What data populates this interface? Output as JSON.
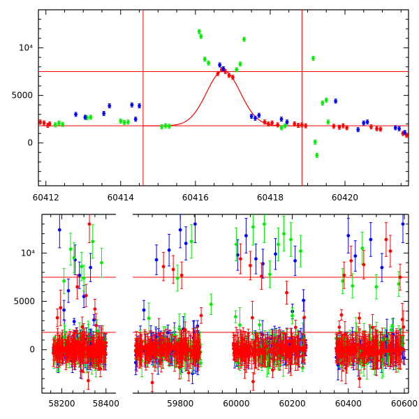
{
  "colors": {
    "red": "#ff0000",
    "green": "#00ee00",
    "blue": "#0000ff",
    "axes": "#000000",
    "background": "#ffffff"
  },
  "chart_data": [
    {
      "type": "scatter",
      "panel": "top",
      "xlim": [
        60411.8,
        60421.7
      ],
      "ylim": [
        -4500,
        14000
      ],
      "x_ticks": [
        60412,
        60414,
        60416,
        60418,
        60420
      ],
      "x_tick_labels": [
        "60412",
        "60414",
        "60416",
        "60418",
        "60420"
      ],
      "y_ticks": [
        0,
        5000,
        10000
      ],
      "y_tick_labels": [
        "0",
        "5000",
        "10⁴"
      ],
      "hlines": [
        7500,
        1800
      ],
      "vlines": [
        60414.6,
        60418.85
      ],
      "fit_curve": {
        "baseline": 1800,
        "peak": 7600,
        "center": 60416.75,
        "sigma": 0.45
      },
      "series": [
        {
          "color": "red",
          "points": [
            [
              60411.85,
              2200
            ],
            [
              60411.95,
              2100
            ],
            [
              60412.05,
              1850
            ],
            [
              60412.1,
              2000
            ],
            [
              60416.6,
              7300
            ],
            [
              60416.7,
              7700
            ],
            [
              60416.8,
              7500
            ],
            [
              60416.9,
              7100
            ],
            [
              60417.0,
              6900
            ],
            [
              60417.85,
              2200
            ],
            [
              60417.95,
              2000
            ],
            [
              60418.05,
              2100
            ],
            [
              60418.2,
              1900
            ],
            [
              60418.65,
              2000
            ],
            [
              60418.75,
              1850
            ],
            [
              60418.85,
              1900
            ],
            [
              60418.95,
              1800
            ],
            [
              60419.7,
              1750
            ],
            [
              60419.85,
              1650
            ],
            [
              60419.95,
              1800
            ],
            [
              60420.05,
              1600
            ],
            [
              60420.7,
              1700
            ],
            [
              60420.85,
              1500
            ],
            [
              60420.95,
              1450
            ],
            [
              60421.55,
              1000
            ],
            [
              60421.65,
              800
            ]
          ]
        },
        {
          "color": "green",
          "points": [
            [
              60412.25,
              1900
            ],
            [
              60412.35,
              2100
            ],
            [
              60412.45,
              1950
            ],
            [
              60413.1,
              2650
            ],
            [
              60413.2,
              2700
            ],
            [
              60414.0,
              2300
            ],
            [
              60414.1,
              2150
            ],
            [
              60414.2,
              2200
            ],
            [
              60415.1,
              1700
            ],
            [
              60415.2,
              1800
            ],
            [
              60415.3,
              1750
            ],
            [
              60416.1,
              11700
            ],
            [
              60416.15,
              11200
            ],
            [
              60416.25,
              8800
            ],
            [
              60416.35,
              8400
            ],
            [
              60417.1,
              7700
            ],
            [
              60417.2,
              8300
            ],
            [
              60417.3,
              10900
            ],
            [
              60418.3,
              1600
            ],
            [
              60418.4,
              1800
            ],
            [
              60419.15,
              8900
            ],
            [
              60419.2,
              100
            ],
            [
              60419.25,
              -1300
            ],
            [
              60419.4,
              4200
            ],
            [
              60419.5,
              4500
            ],
            [
              60419.55,
              2200
            ]
          ]
        },
        {
          "color": "blue",
          "points": [
            [
              60412.8,
              3000
            ],
            [
              60413.05,
              2700
            ],
            [
              60413.55,
              3100
            ],
            [
              60413.7,
              3900
            ],
            [
              60414.3,
              4000
            ],
            [
              60414.4,
              2500
            ],
            [
              60414.5,
              3900
            ],
            [
              60416.65,
              8200
            ],
            [
              60416.75,
              7800
            ],
            [
              60417.5,
              2800
            ],
            [
              60417.6,
              2600
            ],
            [
              60417.7,
              2900
            ],
            [
              60418.3,
              2500
            ],
            [
              60418.45,
              2200
            ],
            [
              60419.75,
              4400
            ],
            [
              60420.35,
              1400
            ],
            [
              60420.5,
              2100
            ],
            [
              60420.6,
              2200
            ],
            [
              60421.35,
              1600
            ],
            [
              60421.45,
              1500
            ],
            [
              60421.6,
              1100
            ]
          ]
        }
      ]
    },
    {
      "type": "scatter",
      "panel": "bottom",
      "axis_break": true,
      "segments": [
        {
          "xlim": [
            58110,
            58445
          ],
          "x_ticks": [
            58200,
            58400
          ],
          "x_tick_labels": [
            "58200",
            "58400"
          ]
        },
        {
          "xlim": [
            59630,
            60615
          ],
          "x_ticks": [
            59800,
            60000,
            60200,
            60400,
            60600
          ],
          "x_tick_labels": [
            "59800",
            "60000",
            "60200",
            "60400",
            "60600"
          ]
        }
      ],
      "ylim": [
        -4500,
        14000
      ],
      "y_ticks": [
        0,
        5000,
        10000
      ],
      "y_tick_labels": [
        "0",
        "5000",
        "10⁴"
      ],
      "hlines": [
        7500,
        1800
      ],
      "observing_seasons": [
        [
          58160,
          58400
        ],
        [
          59640,
          59875
        ],
        [
          59990,
          60250
        ],
        [
          60355,
          60600
        ]
      ],
      "series": [
        {
          "color": "blue",
          "points": [
            [
              58190,
              12400
            ],
            [
              58230,
              6100
            ],
            [
              58260,
              9300
            ],
            [
              58280,
              7700
            ],
            [
              58300,
              5500
            ],
            [
              58330,
              8500
            ],
            [
              58210,
              4100
            ],
            [
              59800,
              12400
            ],
            [
              59715,
              9300
            ],
            [
              59760,
              10300
            ],
            [
              59820,
              11000
            ],
            [
              59853,
              13000
            ],
            [
              60005,
              9800
            ],
            [
              60035,
              11800
            ],
            [
              60070,
              9400
            ],
            [
              60095,
              8900
            ],
            [
              60140,
              9900
            ],
            [
              60210,
              9200
            ],
            [
              60400,
              11800
            ],
            [
              60425,
              9700
            ],
            [
              60480,
              11400
            ],
            [
              60520,
              8500
            ],
            [
              60595,
              13000
            ],
            [
              59670,
              4100
            ],
            [
              60240,
              5100
            ]
          ]
        },
        {
          "color": "green",
          "points": [
            [
              58240,
              10400
            ],
            [
              58255,
              9500
            ],
            [
              58290,
              8600
            ],
            [
              58340,
              11200
            ],
            [
              58380,
              9000
            ],
            [
              58210,
              7100
            ],
            [
              58300,
              7400
            ],
            [
              59840,
              11200
            ],
            [
              59790,
              7400
            ],
            [
              60000,
              10900
            ],
            [
              60060,
              12700
            ],
            [
              60100,
              13000
            ],
            [
              60150,
              10900
            ],
            [
              60170,
              12000
            ],
            [
              60195,
              11400
            ],
            [
              60230,
              10200
            ],
            [
              60380,
              7100
            ],
            [
              60415,
              6600
            ],
            [
              60450,
              10500
            ],
            [
              60500,
              6500
            ],
            [
              60580,
              6800
            ],
            [
              60120,
              7800
            ],
            [
              59910,
              4700
            ]
          ]
        },
        {
          "color": "red",
          "points": [
            [
              58325,
              13000
            ],
            [
              58270,
              6500
            ],
            [
              58310,
              5600
            ],
            [
              58350,
              4200
            ],
            [
              58180,
              3300
            ],
            [
              59805,
              7700
            ],
            [
              59740,
              8600
            ],
            [
              59775,
              8300
            ],
            [
              60015,
              9400
            ],
            [
              60050,
              8700
            ],
            [
              60090,
              7600
            ],
            [
              60180,
              5900
            ],
            [
              60385,
              7700
            ],
            [
              60410,
              9200
            ],
            [
              60455,
              8800
            ],
            [
              60535,
              11400
            ],
            [
              60550,
              10200
            ],
            [
              60585,
              7500
            ],
            [
              58290,
              -2200
            ],
            [
              58320,
              -3200
            ],
            [
              59700,
              -3400
            ],
            [
              59830,
              -2400
            ],
            [
              60060,
              -3300
            ],
            [
              60130,
              -2100
            ],
            [
              60440,
              -3000
            ],
            [
              60500,
              -1900
            ]
          ]
        }
      ]
    }
  ]
}
